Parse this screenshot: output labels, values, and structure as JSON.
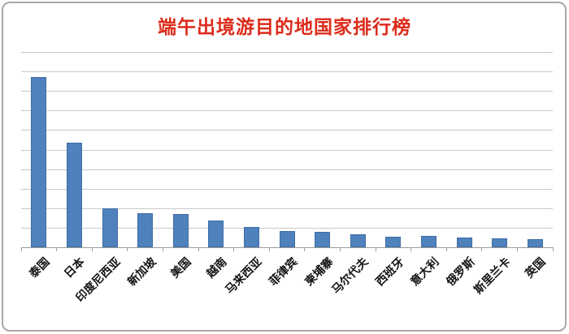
{
  "chart_data": {
    "type": "bar",
    "title": "端午出境游目的地国家排行榜",
    "xlabel": "",
    "ylabel": "",
    "categories": [
      "泰国",
      "日本",
      "印度尼西亚",
      "新加坡",
      "美国",
      "越南",
      "马来西亚",
      "菲律宾",
      "柬埔寨",
      "马尔代夫",
      "西班牙",
      "意大利",
      "俄罗斯",
      "斯里兰卡",
      "英国"
    ],
    "values": [
      8.7,
      5.35,
      2.0,
      1.75,
      1.72,
      1.35,
      1.02,
      0.82,
      0.78,
      0.65,
      0.55,
      0.6,
      0.5,
      0.46,
      0.42
    ],
    "ylim": [
      0,
      10
    ],
    "y_axis_labels_visible": false,
    "gridline_intervals": 10,
    "grid": true,
    "legend": "none",
    "x_label_rotation_deg": 45
  },
  "colors": {
    "title": "#dd2b1b",
    "bar_fill": "#4f81bd",
    "bar_border": "#3e6da5",
    "gridline": "#c9c9c9",
    "axis": "#9b9b9b",
    "frame_border": "#a9a9a9",
    "background": "#ffffff",
    "label_text": "#141414"
  }
}
